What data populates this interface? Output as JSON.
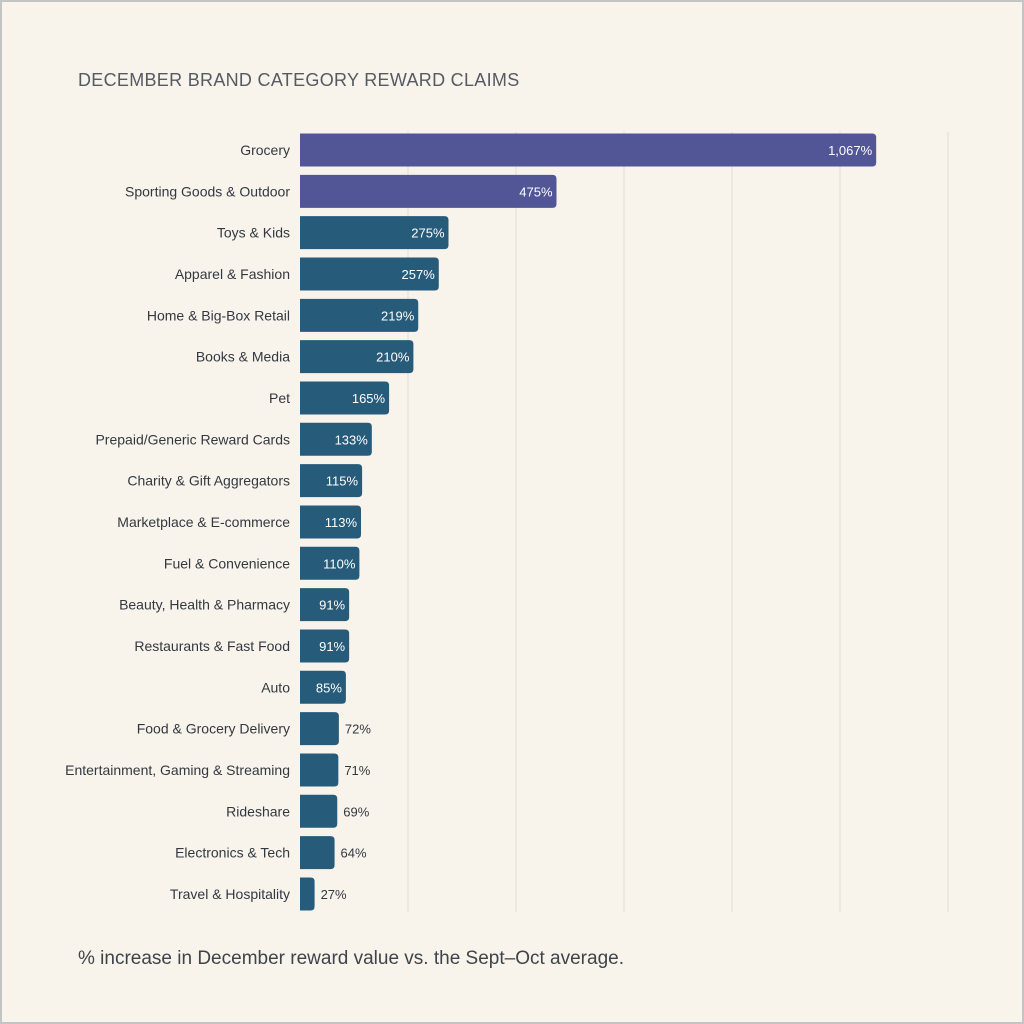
{
  "chart_data": {
    "type": "bar",
    "orientation": "horizontal",
    "title": "DECEMBER BRAND CATEGORY REWARD CLAIMS",
    "footnote": "% increase in December reward value vs. the Sept–Oct average.",
    "categories": [
      "Grocery",
      "Sporting Goods & Outdoor",
      "Toys & Kids",
      "Apparel & Fashion",
      "Home & Big-Box Retail",
      "Books & Media",
      "Pet",
      "Prepaid/Generic Reward Cards",
      "Charity & Gift Aggregators",
      "Marketplace & E-commerce",
      "Fuel & Convenience",
      "Beauty, Health & Pharmacy",
      "Restaurants & Fast Food",
      "Auto",
      "Food & Grocery Delivery",
      "Entertainment, Gaming & Streaming",
      "Rideshare",
      "Electronics & Tech",
      "Travel & Hospitality"
    ],
    "values": [
      1067,
      475,
      275,
      257,
      219,
      210,
      165,
      133,
      115,
      113,
      110,
      91,
      91,
      85,
      72,
      71,
      69,
      64,
      27
    ],
    "value_labels": [
      "1,067%",
      "475%",
      "275%",
      "257%",
      "219%",
      "210%",
      "165%",
      "133%",
      "115%",
      "113%",
      "110%",
      "91%",
      "91%",
      "85%",
      "72%",
      "71%",
      "69%",
      "64%",
      "27%"
    ],
    "highlighted_count": 2,
    "xlim": [
      0,
      1200
    ],
    "grid_step": 200,
    "grid": true,
    "legend": "none",
    "colors": {
      "highlight": "#525697",
      "bar": "#275b7a",
      "grid": "#e2ddd3",
      "label_inside": "#ffffff",
      "label_outside": "#333840"
    }
  }
}
